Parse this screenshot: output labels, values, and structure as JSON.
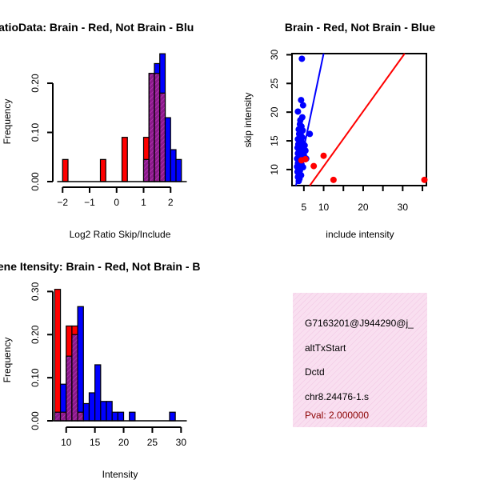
{
  "colors": {
    "red": "#ff0000",
    "blue": "#0000ff",
    "overlap": "#8b1a8b",
    "overlap_hatch": "#ff00ff",
    "info_bg": "#f9dff0",
    "pval": "#8b0000"
  },
  "chart_data": [
    {
      "type": "bar",
      "title": "RatioData: Brain - Red, Not Brain - Blu",
      "xlabel": "Log2 Ratio Skip/Include",
      "ylabel": "Frequency",
      "xlim": [
        -2.2,
        2.6
      ],
      "ylim": [
        0,
        0.27
      ],
      "xticks": [
        -2,
        -1,
        0,
        1,
        2
      ],
      "xtick_labels": [
        "−2",
        "−1",
        "0",
        "1",
        "2"
      ],
      "yticks": [
        0.0,
        0.1,
        0.2
      ],
      "ytick_labels": [
        "0.00",
        "0.10",
        "0.20"
      ],
      "series": [
        {
          "name": "Brain",
          "color": "red",
          "bins": [
            {
              "x0": -2.0,
              "x1": -1.8,
              "y": 0.045
            },
            {
              "x0": -0.6,
              "x1": -0.4,
              "y": 0.045
            },
            {
              "x0": 0.2,
              "x1": 0.4,
              "y": 0.09
            },
            {
              "x0": 1.0,
              "x1": 1.2,
              "y": 0.09
            },
            {
              "x0": 1.2,
              "x1": 1.4,
              "y": 0.22
            },
            {
              "x0": 1.4,
              "x1": 1.6,
              "y": 0.22
            },
            {
              "x0": 1.6,
              "x1": 1.8,
              "y": 0.18
            }
          ]
        },
        {
          "name": "Not Brain",
          "color": "blue",
          "bins": [
            {
              "x0": 1.0,
              "x1": 1.2,
              "y": 0.045
            },
            {
              "x0": 1.2,
              "x1": 1.4,
              "y": 0.22
            },
            {
              "x0": 1.4,
              "x1": 1.6,
              "y": 0.24
            },
            {
              "x0": 1.6,
              "x1": 1.8,
              "y": 0.26
            },
            {
              "x0": 1.8,
              "x1": 2.0,
              "y": 0.13
            },
            {
              "x0": 2.0,
              "x1": 2.2,
              "y": 0.065
            },
            {
              "x0": 2.2,
              "x1": 2.4,
              "y": 0.045
            }
          ]
        }
      ]
    },
    {
      "type": "scatter",
      "title": "Brain - Red, Not Brain - Blue",
      "xlabel": "include intensity",
      "ylabel": "skip intensity",
      "xlim": [
        2,
        36
      ],
      "ylim": [
        7.2,
        30.2
      ],
      "xticks": [
        5,
        10,
        20,
        30
      ],
      "xtick_labels": [
        "5",
        "10",
        "20",
        "30"
      ],
      "xminor_ticks": [
        15,
        25,
        35
      ],
      "yticks": [
        10,
        15,
        20,
        25,
        30
      ],
      "ytick_labels": [
        "10",
        "15",
        "20",
        "25",
        "30"
      ],
      "series": [
        {
          "name": "Not Brain",
          "color": "blue",
          "points": [
            [
              4.5,
              29.3
            ],
            [
              4.3,
              22.1
            ],
            [
              4.8,
              21.2
            ],
            [
              3.5,
              20.1
            ],
            [
              4.6,
              19.1
            ],
            [
              4.1,
              18.6
            ],
            [
              4.0,
              17.9
            ],
            [
              4.4,
              17.5
            ],
            [
              3.7,
              17.0
            ],
            [
              4.7,
              16.8
            ],
            [
              3.8,
              16.2
            ],
            [
              6.5,
              16.2
            ],
            [
              4.2,
              16.0
            ],
            [
              4.6,
              15.6
            ],
            [
              3.5,
              15.3
            ],
            [
              4.3,
              15.2
            ],
            [
              4.0,
              14.8
            ],
            [
              4.8,
              14.6
            ],
            [
              3.6,
              14.4
            ],
            [
              5.2,
              14.2
            ],
            [
              4.1,
              14.0
            ],
            [
              3.4,
              13.8
            ],
            [
              4.5,
              13.6
            ],
            [
              3.9,
              13.4
            ],
            [
              5.4,
              13.3
            ],
            [
              4.2,
              13.0
            ],
            [
              3.5,
              12.8
            ],
            [
              4.6,
              12.6
            ],
            [
              5.0,
              12.5
            ],
            [
              3.8,
              12.3
            ],
            [
              4.3,
              12.1
            ],
            [
              3.3,
              11.9
            ],
            [
              4.7,
              11.8
            ],
            [
              3.7,
              11.6
            ],
            [
              4.1,
              11.4
            ],
            [
              5.6,
              11.9
            ],
            [
              3.5,
              11.1
            ],
            [
              4.4,
              10.9
            ],
            [
              3.9,
              10.7
            ],
            [
              3.3,
              10.5
            ],
            [
              4.2,
              10.3
            ],
            [
              3.6,
              10.1
            ],
            [
              4.0,
              9.8
            ],
            [
              3.4,
              9.6
            ],
            [
              3.8,
              9.3
            ],
            [
              4.3,
              9.0
            ],
            [
              3.5,
              8.7
            ],
            [
              3.9,
              8.4
            ],
            [
              4.2,
              13.0
            ],
            [
              3.6,
              12.9
            ],
            [
              4.8,
              10.4
            ],
            [
              3.7,
              8.0
            ]
          ]
        },
        {
          "name": "Brain",
          "color": "red",
          "points": [
            [
              5.4,
              11.8
            ],
            [
              7.5,
              10.6
            ],
            [
              10.0,
              12.4
            ],
            [
              12.5,
              8.2
            ],
            [
              35.5,
              8.2
            ],
            [
              4.4,
              11.6
            ]
          ]
        }
      ],
      "fit_lines": [
        {
          "color": "blue",
          "points": [
            [
              3.0,
              7.2
            ],
            [
              10.0,
              30.2
            ]
          ]
        },
        {
          "color": "red",
          "points": [
            [
              6.5,
              7.2
            ],
            [
              30.5,
              30.2
            ]
          ]
        }
      ]
    },
    {
      "type": "bar",
      "title": "Gene Itensity: Brain - Red, Not Brain - B",
      "xlabel": "Intensity",
      "ylabel": "Frequency",
      "xlim": [
        7.5,
        31
      ],
      "ylim": [
        0,
        0.31
      ],
      "xticks": [
        10,
        15,
        20,
        25,
        30
      ],
      "xtick_labels": [
        "10",
        "15",
        "20",
        "25",
        "30"
      ],
      "yticks": [
        0.0,
        0.1,
        0.2,
        0.3
      ],
      "ytick_labels": [
        "0.00",
        "0.10",
        "0.20",
        "0.30"
      ],
      "series": [
        {
          "name": "Brain",
          "color": "red",
          "bins": [
            {
              "x0": 8,
              "x1": 9,
              "y": 0.305
            },
            {
              "x0": 9,
              "x1": 10,
              "y": 0.02
            },
            {
              "x0": 10,
              "x1": 11,
              "y": 0.22
            },
            {
              "x0": 11,
              "x1": 12,
              "y": 0.22
            },
            {
              "x0": 12,
              "x1": 13,
              "y": 0.02
            }
          ]
        },
        {
          "name": "Not Brain",
          "color": "blue",
          "bins": [
            {
              "x0": 8,
              "x1": 9,
              "y": 0.02
            },
            {
              "x0": 9,
              "x1": 10,
              "y": 0.085
            },
            {
              "x0": 10,
              "x1": 11,
              "y": 0.15
            },
            {
              "x0": 11,
              "x1": 12,
              "y": 0.2
            },
            {
              "x0": 12,
              "x1": 13,
              "y": 0.265
            },
            {
              "x0": 13,
              "x1": 14,
              "y": 0.04
            },
            {
              "x0": 14,
              "x1": 15,
              "y": 0.065
            },
            {
              "x0": 15,
              "x1": 16,
              "y": 0.13
            },
            {
              "x0": 16,
              "x1": 17,
              "y": 0.045
            },
            {
              "x0": 17,
              "x1": 18,
              "y": 0.045
            },
            {
              "x0": 18,
              "x1": 19,
              "y": 0.02
            },
            {
              "x0": 19,
              "x1": 20,
              "y": 0.02
            },
            {
              "x0": 21,
              "x1": 22,
              "y": 0.02
            },
            {
              "x0": 28,
              "x1": 29,
              "y": 0.02
            }
          ]
        }
      ]
    }
  ],
  "info_panel": {
    "lines": [
      "G7163201@J944290@j_",
      "altTxStart",
      "Dctd",
      "chr8.24476-1.s"
    ],
    "pval": "Pval: 2.000000"
  }
}
